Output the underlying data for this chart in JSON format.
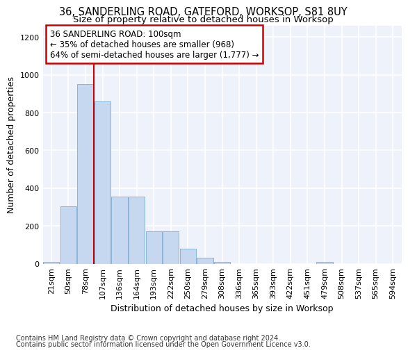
{
  "title1": "36, SANDERLING ROAD, GATEFORD, WORKSOP, S81 8UY",
  "title2": "Size of property relative to detached houses in Worksop",
  "xlabel": "Distribution of detached houses by size in Worksop",
  "ylabel": "Number of detached properties",
  "categories": [
    "21sqm",
    "50sqm",
    "78sqm",
    "107sqm",
    "136sqm",
    "164sqm",
    "193sqm",
    "222sqm",
    "250sqm",
    "279sqm",
    "308sqm",
    "336sqm",
    "365sqm",
    "393sqm",
    "422sqm",
    "451sqm",
    "479sqm",
    "508sqm",
    "537sqm",
    "565sqm",
    "594sqm"
  ],
  "values": [
    10,
    305,
    950,
    860,
    355,
    355,
    170,
    170,
    80,
    30,
    10,
    0,
    0,
    0,
    0,
    0,
    10,
    0,
    0,
    0,
    0
  ],
  "bar_color": "#c5d8f0",
  "bar_edge_color": "#7aadd4",
  "vline_x": 2.5,
  "annotation_text": "36 SANDERLING ROAD: 100sqm\n← 35% of detached houses are smaller (968)\n64% of semi-detached houses are larger (1,777) →",
  "annotation_box_color": "white",
  "annotation_box_edge_color": "#cc0000",
  "vline_color": "#cc0000",
  "ylim": [
    0,
    1260
  ],
  "yticks": [
    0,
    200,
    400,
    600,
    800,
    1000,
    1200
  ],
  "footer1": "Contains HM Land Registry data © Crown copyright and database right 2024.",
  "footer2": "Contains public sector information licensed under the Open Government Licence v3.0.",
  "background_color": "#eef2fb",
  "grid_color": "white",
  "title_fontsize": 10.5,
  "subtitle_fontsize": 9.5,
  "axis_label_fontsize": 9,
  "tick_fontsize": 8,
  "annotation_fontsize": 8.5,
  "footer_fontsize": 7
}
